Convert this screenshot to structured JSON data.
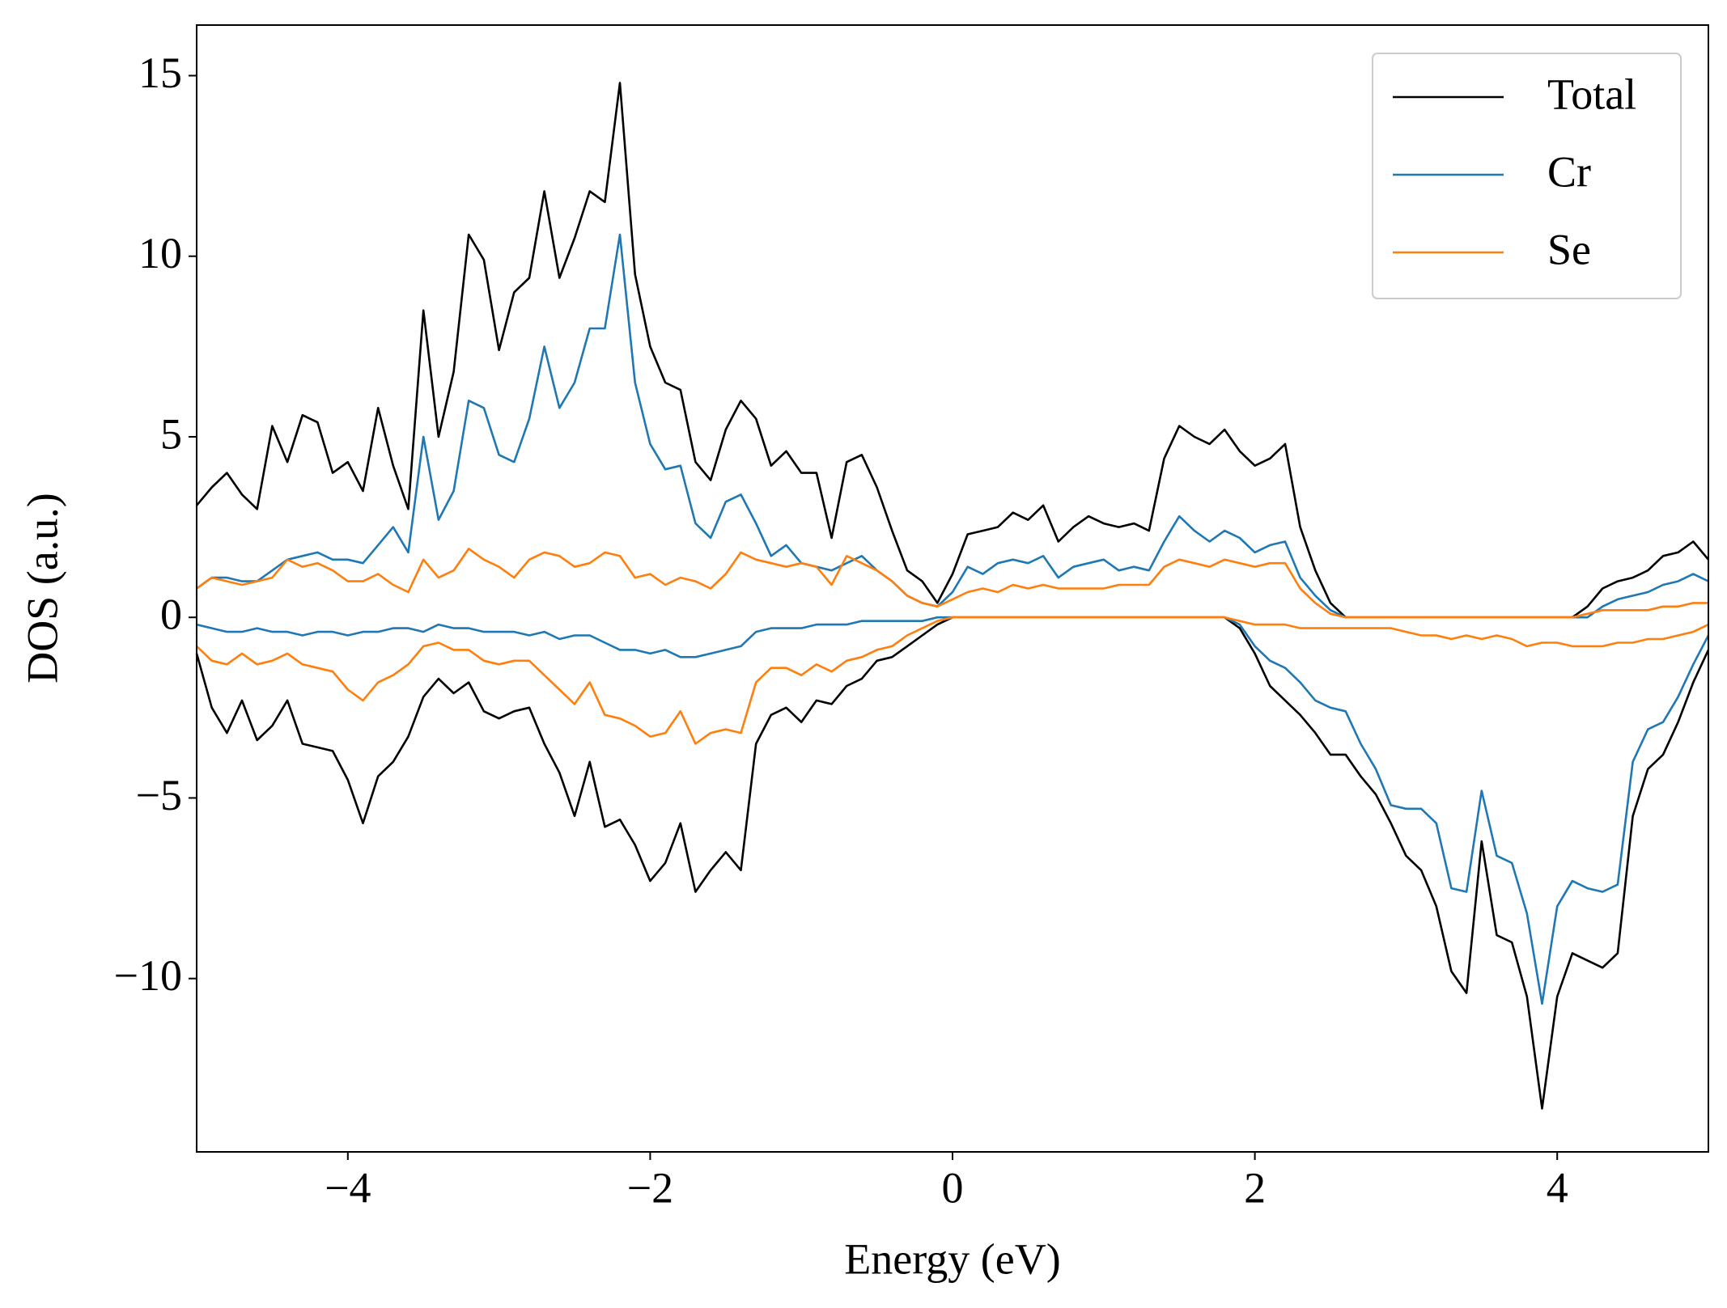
{
  "chart_data": {
    "type": "line",
    "xlabel": "Energy (eV)",
    "ylabel": "DOS (a.u.)",
    "xlim": [
      -5,
      5
    ],
    "ylim": [
      -14.8,
      16.4
    ],
    "xticks": [
      {
        "value": -4,
        "label": "−4"
      },
      {
        "value": -2,
        "label": "−2"
      },
      0,
      2,
      4
    ],
    "yticks": [
      {
        "value": -10,
        "label": "−10"
      },
      {
        "value": -5,
        "label": "−5"
      },
      0,
      5,
      10,
      15
    ],
    "legend": "upper right",
    "x": [
      -5,
      -4.9,
      -4.8,
      -4.7,
      -4.6,
      -4.5,
      -4.4,
      -4.3,
      -4.2,
      -4.1,
      -4,
      -3.9,
      -3.8,
      -3.7,
      -3.6,
      -3.5,
      -3.4,
      -3.3,
      -3.2,
      -3.1,
      -3,
      -2.9,
      -2.8,
      -2.7,
      -2.6,
      -2.5,
      -2.4,
      -2.3,
      -2.2,
      -2.1,
      -2,
      -1.9,
      -1.8,
      -1.7,
      -1.6,
      -1.5,
      -1.4,
      -1.3,
      -1.2,
      -1.1,
      -1,
      -0.9,
      -0.8,
      -0.7,
      -0.6,
      -0.5,
      -0.4,
      -0.3,
      -0.2,
      -0.1,
      0,
      0.1,
      0.2,
      0.3,
      0.4,
      0.5,
      0.6,
      0.7,
      0.8,
      0.9,
      1,
      1.1,
      1.2,
      1.3,
      1.4,
      1.5,
      1.6,
      1.7,
      1.8,
      1.9,
      2,
      2.1,
      2.2,
      2.3,
      2.4,
      2.5,
      2.6,
      2.7,
      2.8,
      2.9,
      3,
      3.1,
      3.2,
      3.3,
      3.4,
      3.5,
      3.6,
      3.7,
      3.8,
      3.9,
      4,
      4.1,
      4.2,
      4.3,
      4.4,
      4.5,
      4.6,
      4.7,
      4.8,
      4.9,
      5
    ],
    "series": [
      {
        "name": "Total",
        "color": "#000000",
        "values": [
          3.1,
          3.6,
          4.0,
          3.4,
          3.0,
          5.3,
          4.3,
          5.6,
          5.4,
          4.0,
          4.3,
          3.5,
          5.8,
          4.2,
          3.0,
          8.5,
          5.0,
          6.8,
          10.6,
          9.9,
          7.4,
          9.0,
          9.4,
          11.8,
          9.4,
          10.5,
          11.8,
          11.5,
          14.8,
          9.5,
          7.5,
          6.5,
          6.3,
          4.3,
          3.8,
          5.2,
          6.0,
          5.5,
          4.2,
          4.6,
          4.0,
          4.0,
          2.2,
          4.3,
          4.5,
          3.6,
          2.4,
          1.3,
          1.0,
          0.4,
          1.2,
          2.3,
          2.4,
          2.5,
          2.9,
          2.7,
          3.1,
          2.1,
          2.5,
          2.8,
          2.6,
          2.5,
          2.6,
          2.4,
          4.4,
          5.3,
          5.0,
          4.8,
          5.2,
          4.6,
          4.2,
          4.4,
          4.8,
          2.5,
          1.3,
          0.4,
          0,
          0,
          0,
          0,
          0,
          0,
          0,
          0,
          0,
          0,
          0,
          0,
          0,
          0,
          0,
          0,
          0.3,
          0.8,
          1.0,
          1.1,
          1.3,
          1.7,
          1.8,
          2.1,
          1.6
        ],
        "values_down": [
          -1.0,
          -2.5,
          -3.2,
          -2.3,
          -3.4,
          -3.0,
          -2.3,
          -3.5,
          -3.6,
          -3.7,
          -4.5,
          -5.7,
          -4.4,
          -4.0,
          -3.3,
          -2.2,
          -1.7,
          -2.1,
          -1.8,
          -2.6,
          -2.8,
          -2.6,
          -2.5,
          -3.5,
          -4.3,
          -5.5,
          -4.0,
          -5.8,
          -5.6,
          -6.3,
          -7.3,
          -6.8,
          -5.7,
          -7.6,
          -7.0,
          -6.5,
          -7.0,
          -3.5,
          -2.7,
          -2.5,
          -2.9,
          -2.3,
          -2.4,
          -1.9,
          -1.7,
          -1.2,
          -1.1,
          -0.8,
          -0.5,
          -0.2,
          0,
          0,
          0,
          0,
          0,
          0,
          0,
          0,
          0,
          0,
          0,
          0,
          0,
          0,
          0,
          0,
          0,
          0,
          0,
          -0.3,
          -1.0,
          -1.9,
          -2.3,
          -2.7,
          -3.2,
          -3.8,
          -3.8,
          -4.4,
          -4.9,
          -5.7,
          -6.6,
          -7.0,
          -8.0,
          -9.8,
          -10.4,
          -6.2,
          -8.8,
          -9.0,
          -10.5,
          -13.6,
          -10.5,
          -9.3,
          -9.5,
          -9.7,
          -9.3,
          -5.5,
          -4.2,
          -3.8,
          -2.9,
          -1.8,
          -0.9
        ]
      },
      {
        "name": "Cr",
        "color": "#1f77b4",
        "values": [
          0.8,
          1.1,
          1.1,
          1.0,
          1.0,
          1.3,
          1.6,
          1.7,
          1.8,
          1.6,
          1.6,
          1.5,
          2.0,
          2.5,
          1.8,
          5.0,
          2.7,
          3.5,
          6.0,
          5.8,
          4.5,
          4.3,
          5.5,
          7.5,
          5.8,
          6.5,
          8.0,
          8.0,
          10.6,
          6.5,
          4.8,
          4.1,
          4.2,
          2.6,
          2.2,
          3.2,
          3.4,
          2.6,
          1.7,
          2.0,
          1.5,
          1.4,
          1.3,
          1.5,
          1.7,
          1.3,
          1.0,
          0.6,
          0.4,
          0.3,
          0.7,
          1.4,
          1.2,
          1.5,
          1.6,
          1.5,
          1.7,
          1.1,
          1.4,
          1.5,
          1.6,
          1.3,
          1.4,
          1.3,
          2.1,
          2.8,
          2.4,
          2.1,
          2.4,
          2.2,
          1.8,
          2.0,
          2.1,
          1.1,
          0.6,
          0.2,
          0,
          0,
          0,
          0,
          0,
          0,
          0,
          0,
          0,
          0,
          0,
          0,
          0,
          0,
          0,
          0,
          0,
          0.3,
          0.5,
          0.6,
          0.7,
          0.9,
          1.0,
          1.2,
          1.0
        ],
        "values_down": [
          -0.2,
          -0.3,
          -0.4,
          -0.4,
          -0.3,
          -0.4,
          -0.4,
          -0.5,
          -0.4,
          -0.4,
          -0.5,
          -0.4,
          -0.4,
          -0.3,
          -0.3,
          -0.4,
          -0.2,
          -0.3,
          -0.3,
          -0.4,
          -0.4,
          -0.4,
          -0.5,
          -0.4,
          -0.6,
          -0.5,
          -0.5,
          -0.7,
          -0.9,
          -0.9,
          -1.0,
          -0.9,
          -1.1,
          -1.1,
          -1.0,
          -0.9,
          -0.8,
          -0.4,
          -0.3,
          -0.3,
          -0.3,
          -0.2,
          -0.2,
          -0.2,
          -0.1,
          -0.1,
          -0.1,
          -0.1,
          -0.1,
          0,
          0,
          0,
          0,
          0,
          0,
          0,
          0,
          0,
          0,
          0,
          0,
          0,
          0,
          0,
          0,
          0,
          0,
          0,
          0,
          -0.2,
          -0.8,
          -1.2,
          -1.4,
          -1.8,
          -2.3,
          -2.5,
          -2.6,
          -3.5,
          -4.2,
          -5.2,
          -5.3,
          -5.3,
          -5.7,
          -7.5,
          -7.6,
          -4.8,
          -6.6,
          -6.8,
          -8.2,
          -10.7,
          -8.0,
          -7.3,
          -7.5,
          -7.6,
          -7.4,
          -4.0,
          -3.1,
          -2.9,
          -2.2,
          -1.3,
          -0.5
        ]
      },
      {
        "name": "Se",
        "color": "#ff7f0e",
        "values": [
          0.8,
          1.1,
          1.0,
          0.9,
          1.0,
          1.1,
          1.6,
          1.4,
          1.5,
          1.3,
          1.0,
          1.0,
          1.2,
          0.9,
          0.7,
          1.6,
          1.1,
          1.3,
          1.9,
          1.6,
          1.4,
          1.1,
          1.6,
          1.8,
          1.7,
          1.4,
          1.5,
          1.8,
          1.7,
          1.1,
          1.2,
          0.9,
          1.1,
          1.0,
          0.8,
          1.2,
          1.8,
          1.6,
          1.5,
          1.4,
          1.5,
          1.4,
          0.9,
          1.7,
          1.5,
          1.3,
          1.0,
          0.6,
          0.4,
          0.3,
          0.5,
          0.7,
          0.8,
          0.7,
          0.9,
          0.8,
          0.9,
          0.8,
          0.8,
          0.8,
          0.8,
          0.9,
          0.9,
          0.9,
          1.4,
          1.6,
          1.5,
          1.4,
          1.6,
          1.5,
          1.4,
          1.5,
          1.5,
          0.8,
          0.4,
          0.1,
          0,
          0,
          0,
          0,
          0,
          0,
          0,
          0,
          0,
          0,
          0,
          0,
          0,
          0,
          0,
          0,
          0.1,
          0.2,
          0.2,
          0.2,
          0.2,
          0.3,
          0.3,
          0.4,
          0.4
        ],
        "values_down": [
          -0.8,
          -1.2,
          -1.3,
          -1.0,
          -1.3,
          -1.2,
          -1.0,
          -1.3,
          -1.4,
          -1.5,
          -2.0,
          -2.3,
          -1.8,
          -1.6,
          -1.3,
          -0.8,
          -0.7,
          -0.9,
          -0.9,
          -1.2,
          -1.3,
          -1.2,
          -1.2,
          -1.6,
          -2.0,
          -2.4,
          -1.8,
          -2.7,
          -2.8,
          -3.0,
          -3.3,
          -3.2,
          -2.6,
          -3.5,
          -3.2,
          -3.1,
          -3.2,
          -1.8,
          -1.4,
          -1.4,
          -1.6,
          -1.3,
          -1.5,
          -1.2,
          -1.1,
          -0.9,
          -0.8,
          -0.5,
          -0.3,
          -0.1,
          0,
          0,
          0,
          0,
          0,
          0,
          0,
          0,
          0,
          0,
          0,
          0,
          0,
          0,
          0,
          0,
          0,
          0,
          0,
          -0.1,
          -0.2,
          -0.2,
          -0.2,
          -0.3,
          -0.3,
          -0.3,
          -0.3,
          -0.3,
          -0.3,
          -0.3,
          -0.4,
          -0.5,
          -0.5,
          -0.6,
          -0.5,
          -0.6,
          -0.5,
          -0.6,
          -0.8,
          -0.7,
          -0.7,
          -0.8,
          -0.8,
          -0.8,
          -0.7,
          -0.7,
          -0.6,
          -0.6,
          -0.5,
          -0.4,
          -0.2
        ]
      }
    ]
  }
}
